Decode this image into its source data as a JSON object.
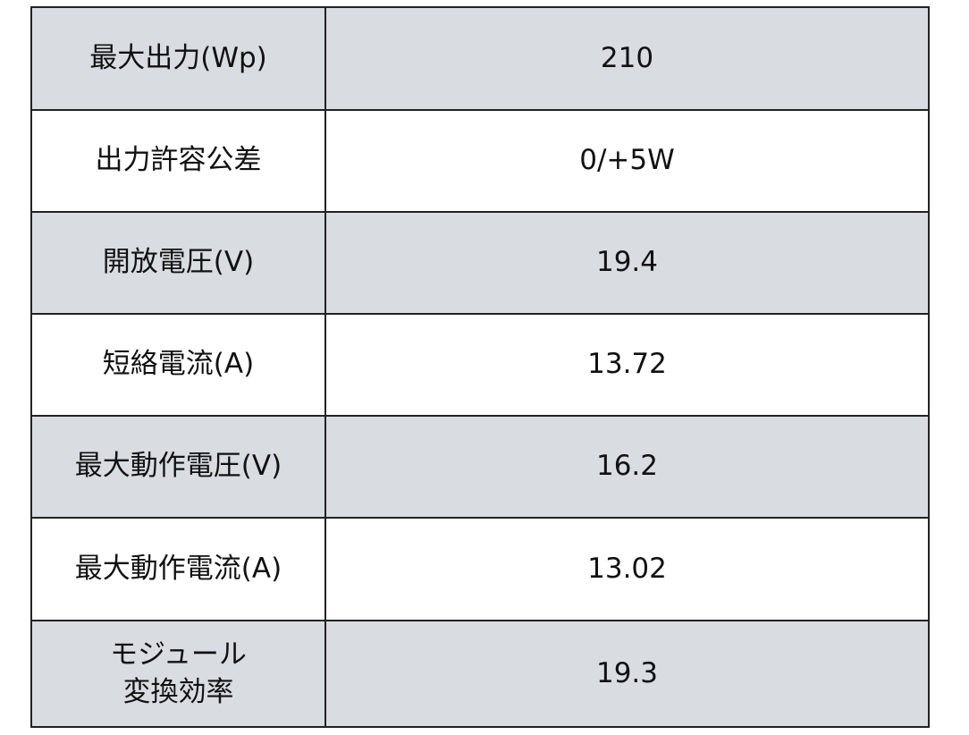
{
  "colors": {
    "shaded_row": "#d9dce0",
    "border": "#222222"
  },
  "rows": [
    {
      "label": "最大出力(Wp)",
      "value": "210"
    },
    {
      "label": "出力許容公差",
      "value": "0/+5W"
    },
    {
      "label": "開放電圧(V)",
      "value": "19.4"
    },
    {
      "label": "短絡電流(A)",
      "value": "13.72"
    },
    {
      "label": "最大動作電圧(V)",
      "value": "16.2"
    },
    {
      "label": "最大動作電流(A)",
      "value": "13.02"
    },
    {
      "label_lines": [
        "モジュール",
        "変換効率"
      ],
      "value": "19.3"
    }
  ]
}
